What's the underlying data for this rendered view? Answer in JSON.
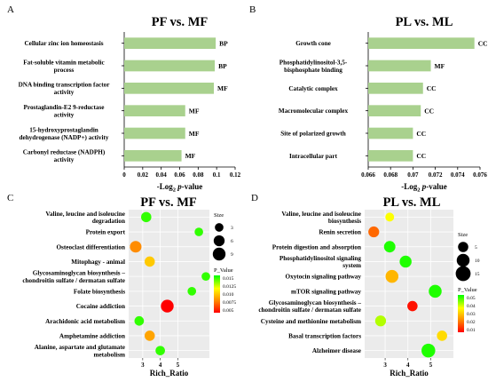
{
  "chart_data": [
    {
      "panel": "A",
      "type": "bar",
      "orientation": "horizontal",
      "title": "PF vs. MF",
      "xlabel": "-Log2 p-value",
      "xlim": [
        0,
        0.12
      ],
      "xticks": [
        "0",
        "0.02",
        "0.04",
        "0.06",
        "0.08",
        "0.1",
        "0.12"
      ],
      "categories": [
        "Cellular zinc ion homeostasis",
        "Fat-soluble vitamin metabolic process",
        "DNA binding transcription factor activity",
        "Prostaglandin-E2 9-reductase activity",
        "15-hydroxyprostaglandin dehydrogenase (NADP+) activity",
        "Carbonyl reductase (NADPH) activity"
      ],
      "label_lines": [
        [
          "Cellular zinc ion homeostasis"
        ],
        [
          "Fat-soluble vitamin metabolic",
          "process"
        ],
        [
          "DNA binding transcription factor",
          "activity"
        ],
        [
          "Prostaglandin-E2 9-reductase",
          "activity"
        ],
        [
          "15-hydroxyprostaglandin",
          "dehydrogenase (NADP+) activity"
        ],
        [
          "Carbonyl reductase (NADPH)",
          "activity"
        ]
      ],
      "values": [
        0.099,
        0.098,
        0.097,
        0.066,
        0.066,
        0.062
      ],
      "tags": [
        "BP",
        "BP",
        "MF",
        "MF",
        "MF",
        "MF"
      ],
      "bar_color": "#a9d18e"
    },
    {
      "panel": "B",
      "type": "bar",
      "orientation": "horizontal",
      "title": "PL vs. ML",
      "xlabel": "-Log2 p-value",
      "xlim": [
        0.066,
        0.076
      ],
      "xticks": [
        "0.066",
        "0.068",
        "0.07",
        "0.072",
        "0.074",
        "0.076"
      ],
      "categories": [
        "Growth cone",
        "Phosphatidylinositol-3,5-bisphosphate binding",
        "Catalytic complex",
        "Macromolecular complex",
        "Site of polarized growth",
        "Intracellular part"
      ],
      "label_lines": [
        [
          "Growth cone"
        ],
        [
          "Phosphatidylinositol-3,5-",
          "bisphosphate binding"
        ],
        [
          "Catalytic complex"
        ],
        [
          "Macromolecular complex"
        ],
        [
          "Site of polarized growth"
        ],
        [
          "Intracellular part"
        ]
      ],
      "values": [
        0.0755,
        0.0716,
        0.0709,
        0.0707,
        0.07,
        0.07
      ],
      "tags": [
        "CC",
        "MF",
        "CC",
        "CC",
        "CC",
        "CC"
      ],
      "bar_color": "#a9d18e"
    },
    {
      "panel": "C",
      "type": "scatter",
      "title": "PF vs. MF",
      "xlabel": "Rich_Ratio",
      "xticks": [
        3,
        4,
        5
      ],
      "xlim": [
        2.2,
        6.8
      ],
      "categories": [
        "Valine, leucine and isoleucine degradation",
        "Protein export",
        "Osteoclast differentiation",
        "Mitophagy - animal",
        "Glycosaminoglycan biosynthesis – chondroitin sulfate / dermatan sulfate",
        "Folate biosynthesis",
        "Cocaine addiction",
        "Arachidonic acid metabolism",
        "Amphetamine addiction",
        "Alanine, aspartate and glutamate metabolism"
      ],
      "label_lines": [
        [
          "Valine, leucine and isoleucine",
          "degradation"
        ],
        [
          "Protein export"
        ],
        [
          "Osteoclast differentiation"
        ],
        [
          "Mitophagy - animal"
        ],
        [
          "Glycosaminoglycan biosynthesis –",
          "chondroitin sulfate / dermatan sulfate"
        ],
        [
          "Folate biosynthesis"
        ],
        [
          "Cocaine addiction"
        ],
        [
          "Arachidonic acid metabolism"
        ],
        [
          "Amphetamine addiction"
        ],
        [
          "Alanine, aspartate and glutamate",
          "metabolism"
        ]
      ],
      "x": [
        3.2,
        6.2,
        2.6,
        3.4,
        6.6,
        5.8,
        4.4,
        2.8,
        3.4,
        4.0
      ],
      "size": [
        5,
        3,
        7,
        5,
        3,
        3,
        9,
        4,
        5,
        4
      ],
      "p_value": [
        0.015,
        0.015,
        0.006,
        0.0085,
        0.015,
        0.015,
        0.001,
        0.015,
        0.007,
        0.015
      ],
      "legend": {
        "size_title": "Size",
        "size_values": [
          3,
          6,
          9
        ],
        "color_title": "P_Value",
        "color_labels": [
          "0.015",
          "0.0125",
          "0.010",
          "0.0075",
          "0.005"
        ],
        "color_range": [
          0.001,
          0.016
        ]
      }
    },
    {
      "panel": "D",
      "type": "scatter",
      "title": "PL vs. ML",
      "xlabel": "Rich_Ratio",
      "xticks": [
        3,
        4,
        5
      ],
      "xlim": [
        2.1,
        6.0
      ],
      "categories": [
        "Valine, leucine and isoleucine biosynthesis",
        "Renin secretion",
        "Protein digestion and absorption",
        "Phosphatidylinositol signaling system",
        "Oxytocin signaling pathway",
        "mTOR signaling pathway",
        "Glycosaminoglycan biosynthesis – chondroitin sulfate / dermatan sulfate",
        "Cysteine and methionine metabolism",
        "Basal transcription factors",
        "Alzheimer disease"
      ],
      "label_lines": [
        [
          "Valine, leucine and isoleucine",
          "biosynthesis"
        ],
        [
          "Renin secretion"
        ],
        [
          "Protein digestion and absorption"
        ],
        [
          "Phosphatidylinositol signaling",
          "system"
        ],
        [
          "Oxytocin signaling pathway"
        ],
        [
          "mTOR signaling pathway"
        ],
        [
          "Glycosaminoglycan biosynthesis –",
          "chondroitin sulfate / dermatan sulfate"
        ],
        [
          "Cysteine and methionine metabolism"
        ],
        [
          "Basal transcription factors"
        ],
        [
          "Alzheimer disease"
        ]
      ],
      "x": [
        3.2,
        2.5,
        3.2,
        3.9,
        3.3,
        5.2,
        4.2,
        2.8,
        5.5,
        4.9
      ],
      "size": [
        3,
        6,
        7,
        8,
        10,
        10,
        5,
        6,
        5,
        12
      ],
      "p_value": [
        0.035,
        0.015,
        0.05,
        0.05,
        0.025,
        0.05,
        0.005,
        0.04,
        0.03,
        0.05
      ],
      "legend": {
        "size_title": "Size",
        "size_values": [
          5,
          10,
          15
        ],
        "color_title": "P_Value",
        "color_labels": [
          "0.05",
          "0.04",
          "0.03",
          "0.02",
          "0.01"
        ],
        "color_range": [
          0.003,
          0.052
        ]
      }
    }
  ],
  "colors": {
    "bar": "#a9d18e",
    "plot_background": "#ebebeb",
    "grid": "#ffffff",
    "gradient": [
      "#ff0000",
      "#ff7f00",
      "#ffff00",
      "#00ff00"
    ]
  }
}
